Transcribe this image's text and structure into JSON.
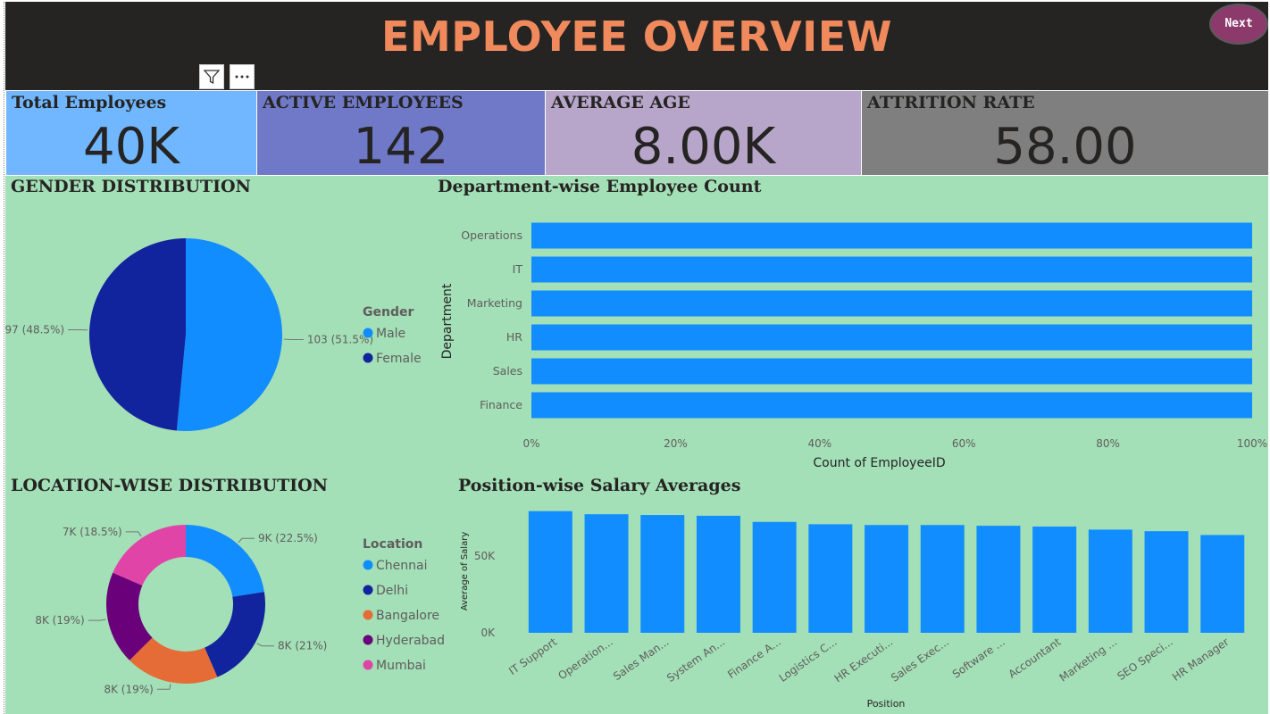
{
  "header": {
    "title": "EMPLOYEE OVERVIEW",
    "next_label": "Next"
  },
  "kpis": [
    {
      "label": "Total Employees",
      "value": "40K"
    },
    {
      "label": "ACTIVE EMPLOYEES",
      "value": "142"
    },
    {
      "label": "AVERAGE AGE",
      "value": "8.00K"
    },
    {
      "label": "ATTRITION RATE",
      "value": "58.00"
    }
  ],
  "toolbar": {
    "filter_icon": "filter-icon",
    "more_icon": "more-options-icon"
  },
  "sections": {
    "gender": "GENDER DISTRIBUTION",
    "department": "Department-wise Employee Count",
    "location": "LOCATION-WISE DISTRIBUTION",
    "position": "Position-wise Salary Averages"
  },
  "colors": {
    "male": "#118dff",
    "female": "#12239e",
    "chennai": "#118dff",
    "delhi": "#12239e",
    "bangalore": "#e66c37",
    "hyderabad": "#6b007b",
    "mumbai": "#e044a7",
    "bar": "#118dff",
    "background": "#a3dfb7"
  },
  "chart_data": [
    {
      "type": "pie",
      "title": "GENDER DISTRIBUTION",
      "legend_title": "Gender",
      "legend_position": "right",
      "slices": [
        {
          "name": "Male",
          "value": 103,
          "label": "103 (51.5%)"
        },
        {
          "name": "Female",
          "value": 97,
          "label": "97 (48.5%)"
        }
      ]
    },
    {
      "type": "bar",
      "orientation": "horizontal",
      "stacked_100": true,
      "title": "Department-wise Employee Count",
      "xlabel": "Count of EmployeeID",
      "ylabel": "Department",
      "categories": [
        "Operations",
        "IT",
        "Marketing",
        "HR",
        "Sales",
        "Finance"
      ],
      "values": [
        100,
        100,
        100,
        100,
        100,
        100
      ],
      "xticks": [
        "0%",
        "20%",
        "40%",
        "60%",
        "80%",
        "100%"
      ],
      "xlim": [
        0,
        100
      ]
    },
    {
      "type": "pie",
      "donut": true,
      "title": "LOCATION-WISE DISTRIBUTION",
      "legend_title": "Location",
      "legend_position": "right",
      "slices": [
        {
          "name": "Chennai",
          "value": 9,
          "label": "9K (22.5%)"
        },
        {
          "name": "Delhi",
          "value": 8.4,
          "label": "8K (21%)"
        },
        {
          "name": "Bangalore",
          "value": 7.6,
          "label": "8K (19%)"
        },
        {
          "name": "Hyderabad",
          "value": 7.6,
          "label": "8K (19%)"
        },
        {
          "name": "Mumbai",
          "value": 7.4,
          "label": "7K (18.5%)"
        }
      ]
    },
    {
      "type": "bar",
      "title": "Position-wise Salary Averages",
      "xlabel": "Position",
      "ylabel": "Average of Salary",
      "categories": [
        "IT Support",
        "Operation...",
        "Sales Man...",
        "System An...",
        "Finance A...",
        "Logistics C...",
        "HR Executi...",
        "Sales Exec...",
        "Software ...",
        "Accountant",
        "Marketing ...",
        "SEO Speci...",
        "HR Manager"
      ],
      "values": [
        79000,
        77000,
        76500,
        76000,
        72000,
        70500,
        70000,
        70000,
        69500,
        69000,
        67000,
        66000,
        63500
      ],
      "yticks": [
        "0K",
        "50K"
      ],
      "ylim": [
        0,
        80000
      ]
    }
  ]
}
